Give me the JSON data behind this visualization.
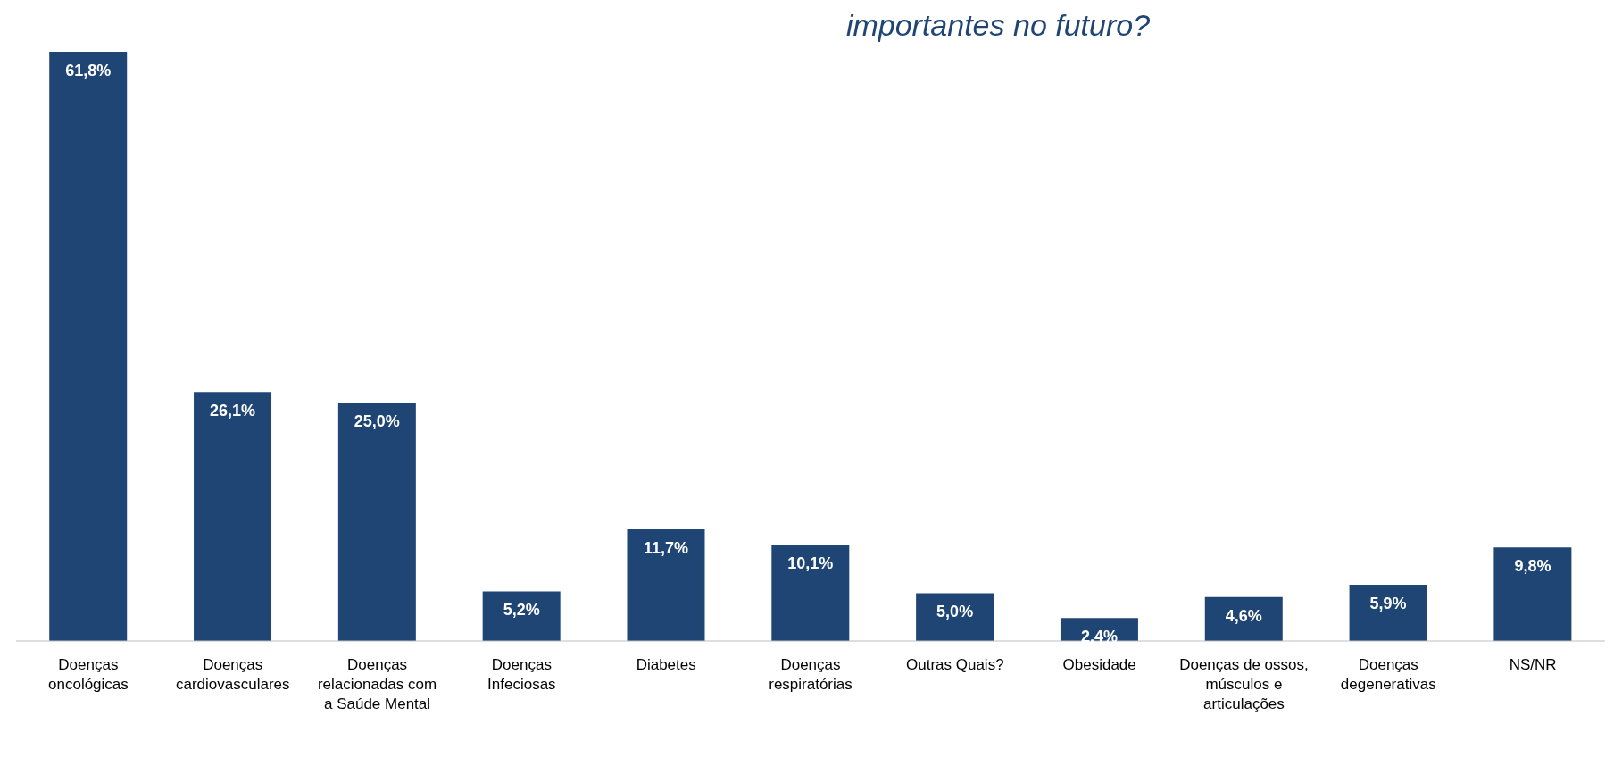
{
  "chart_data": {
    "type": "bar",
    "title": "importantes no futuro?",
    "categories": [
      "Doenças oncológicas",
      "Doenças cardiovasculares",
      "Doenças relacionadas com a Saúde Mental",
      "Doenças Infeciosas",
      "Diabetes",
      "Doenças respiratórias",
      "Outras Quais?",
      "Obesidade",
      "Doenças de ossos, músculos e articulações",
      "Doenças degenerativas",
      "NS/NR"
    ],
    "values": [
      61.8,
      26.1,
      25.0,
      5.2,
      11.7,
      10.1,
      5.0,
      2.4,
      4.6,
      5.9,
      9.8
    ],
    "value_labels": [
      "61,8%",
      "26,1%",
      "25,0%",
      "5,2%",
      "11,7%",
      "10,1%",
      "5,0%",
      "2,4%",
      "4,6%",
      "5,9%",
      "9,8%"
    ],
    "color": "#1f4574",
    "grid": false,
    "legend": false
  }
}
